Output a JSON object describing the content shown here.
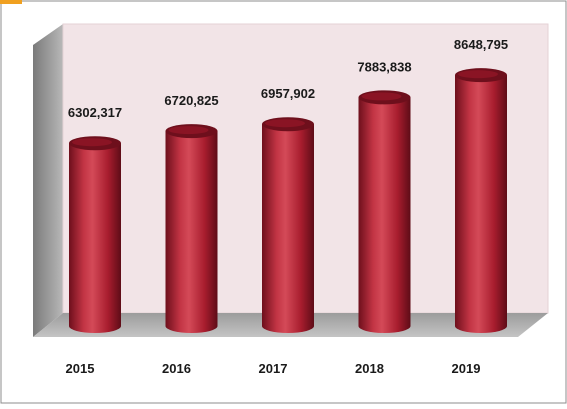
{
  "chart_data": {
    "type": "bar",
    "style": "3d-cylinder",
    "categories": [
      "2015",
      "2016",
      "2017",
      "2018",
      "2019"
    ],
    "values": [
      6302317,
      6720825,
      6957902,
      7883838,
      8648795
    ],
    "value_labels": [
      "6302,317",
      "6720,825",
      "6957,902",
      "7883,838",
      "8648,795"
    ],
    "title": "",
    "xlabel": "",
    "ylabel": "",
    "grid": false,
    "legend": "none",
    "colors": {
      "bar": "#a81d2e",
      "bar_dark": "#6e0f1c",
      "bar_light": "#d44a58",
      "back_wall": "#f2e4e7",
      "side_wall": "#9a9a9a",
      "floor": "#a8a8a8",
      "border": "#8c8c8c",
      "accent_corner": "#f0a020"
    }
  }
}
